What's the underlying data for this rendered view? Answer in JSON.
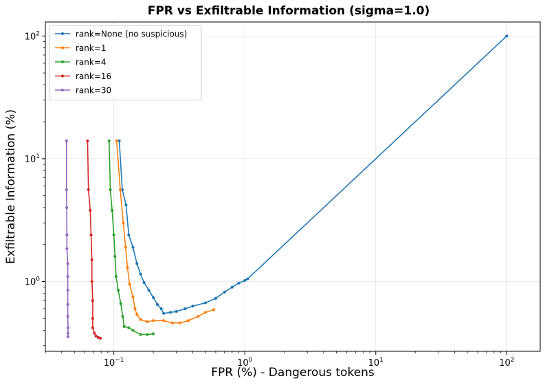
{
  "chart_data": {
    "type": "line",
    "title": "FPR vs Exfiltrable Information (sigma=1.0)",
    "xlabel": "FPR (%) - Dangerous tokens",
    "ylabel": "Exfiltrable Information (%)",
    "xscale": "log",
    "yscale": "log",
    "xlim": [
      0.03,
      180
    ],
    "ylim": [
      0.27,
      130
    ],
    "xticks": [
      {
        "base": "10",
        "exp": "−1",
        "value": 0.1
      },
      {
        "base": "10",
        "exp": "0",
        "value": 1
      },
      {
        "base": "10",
        "exp": "1",
        "value": 10
      },
      {
        "base": "10",
        "exp": "2",
        "value": 100
      }
    ],
    "yticks": [
      {
        "base": "10",
        "exp": "0",
        "value": 1
      },
      {
        "base": "10",
        "exp": "1",
        "value": 10
      },
      {
        "base": "10",
        "exp": "2",
        "value": 100
      }
    ],
    "grid": true,
    "legend_position": "top-left",
    "series": [
      {
        "name": "rank=None (no suspicious)",
        "color": "#1f77b4",
        "points": [
          [
            0.11,
            14.0
          ],
          [
            0.116,
            5.6
          ],
          [
            0.124,
            4.2
          ],
          [
            0.13,
            2.4
          ],
          [
            0.14,
            1.9
          ],
          [
            0.15,
            1.4
          ],
          [
            0.16,
            1.15
          ],
          [
            0.17,
            0.98
          ],
          [
            0.185,
            0.85
          ],
          [
            0.2,
            0.74
          ],
          [
            0.215,
            0.65
          ],
          [
            0.23,
            0.6
          ],
          [
            0.24,
            0.55
          ],
          [
            0.27,
            0.56
          ],
          [
            0.3,
            0.57
          ],
          [
            0.35,
            0.6
          ],
          [
            0.4,
            0.63
          ],
          [
            0.5,
            0.67
          ],
          [
            0.6,
            0.73
          ],
          [
            0.7,
            0.82
          ],
          [
            0.8,
            0.9
          ],
          [
            0.9,
            0.97
          ],
          [
            1.0,
            1.02
          ],
          [
            1.05,
            1.05
          ],
          [
            100,
            100
          ]
        ]
      },
      {
        "name": "rank=1",
        "color": "#ff7f0e",
        "points": [
          [
            0.105,
            14.0
          ],
          [
            0.112,
            5.6
          ],
          [
            0.118,
            3.0
          ],
          [
            0.123,
            1.9
          ],
          [
            0.127,
            1.3
          ],
          [
            0.132,
            0.95
          ],
          [
            0.14,
            0.75
          ],
          [
            0.145,
            0.6
          ],
          [
            0.15,
            0.54
          ],
          [
            0.16,
            0.49
          ],
          [
            0.18,
            0.47
          ],
          [
            0.2,
            0.48
          ],
          [
            0.24,
            0.48
          ],
          [
            0.28,
            0.46
          ],
          [
            0.32,
            0.46
          ],
          [
            0.37,
            0.48
          ],
          [
            0.44,
            0.52
          ],
          [
            0.5,
            0.56
          ],
          [
            0.58,
            0.59
          ]
        ]
      },
      {
        "name": "rank=4",
        "color": "#2ca02c",
        "points": [
          [
            0.092,
            14.0
          ],
          [
            0.094,
            5.6
          ],
          [
            0.097,
            3.8
          ],
          [
            0.1,
            2.4
          ],
          [
            0.102,
            1.6
          ],
          [
            0.104,
            1.1
          ],
          [
            0.108,
            0.85
          ],
          [
            0.113,
            0.66
          ],
          [
            0.117,
            0.52
          ],
          [
            0.12,
            0.43
          ],
          [
            0.13,
            0.42
          ],
          [
            0.14,
            0.4
          ],
          [
            0.16,
            0.37
          ],
          [
            0.18,
            0.37
          ],
          [
            0.2,
            0.375
          ]
        ]
      },
      {
        "name": "rank=16",
        "color": "#d62728",
        "points": [
          [
            0.063,
            14.0
          ],
          [
            0.064,
            5.6
          ],
          [
            0.066,
            3.8
          ],
          [
            0.067,
            2.4
          ],
          [
            0.068,
            1.5
          ],
          [
            0.068,
            1.0
          ],
          [
            0.069,
            0.7
          ],
          [
            0.069,
            0.5
          ],
          [
            0.069,
            0.42
          ],
          [
            0.071,
            0.38
          ],
          [
            0.073,
            0.36
          ],
          [
            0.076,
            0.35
          ],
          [
            0.079,
            0.345
          ]
        ]
      },
      {
        "name": "rank=30",
        "color": "#9467bd",
        "points": [
          [
            0.0435,
            14.0
          ],
          [
            0.0435,
            5.6
          ],
          [
            0.0437,
            4.0
          ],
          [
            0.0438,
            2.4
          ],
          [
            0.0438,
            1.85
          ],
          [
            0.0445,
            1.4
          ],
          [
            0.0445,
            1.1
          ],
          [
            0.0445,
            0.85
          ],
          [
            0.0445,
            0.65
          ],
          [
            0.0445,
            0.52
          ],
          [
            0.0447,
            0.42
          ],
          [
            0.0447,
            0.38
          ],
          [
            0.0447,
            0.355
          ]
        ]
      }
    ]
  }
}
